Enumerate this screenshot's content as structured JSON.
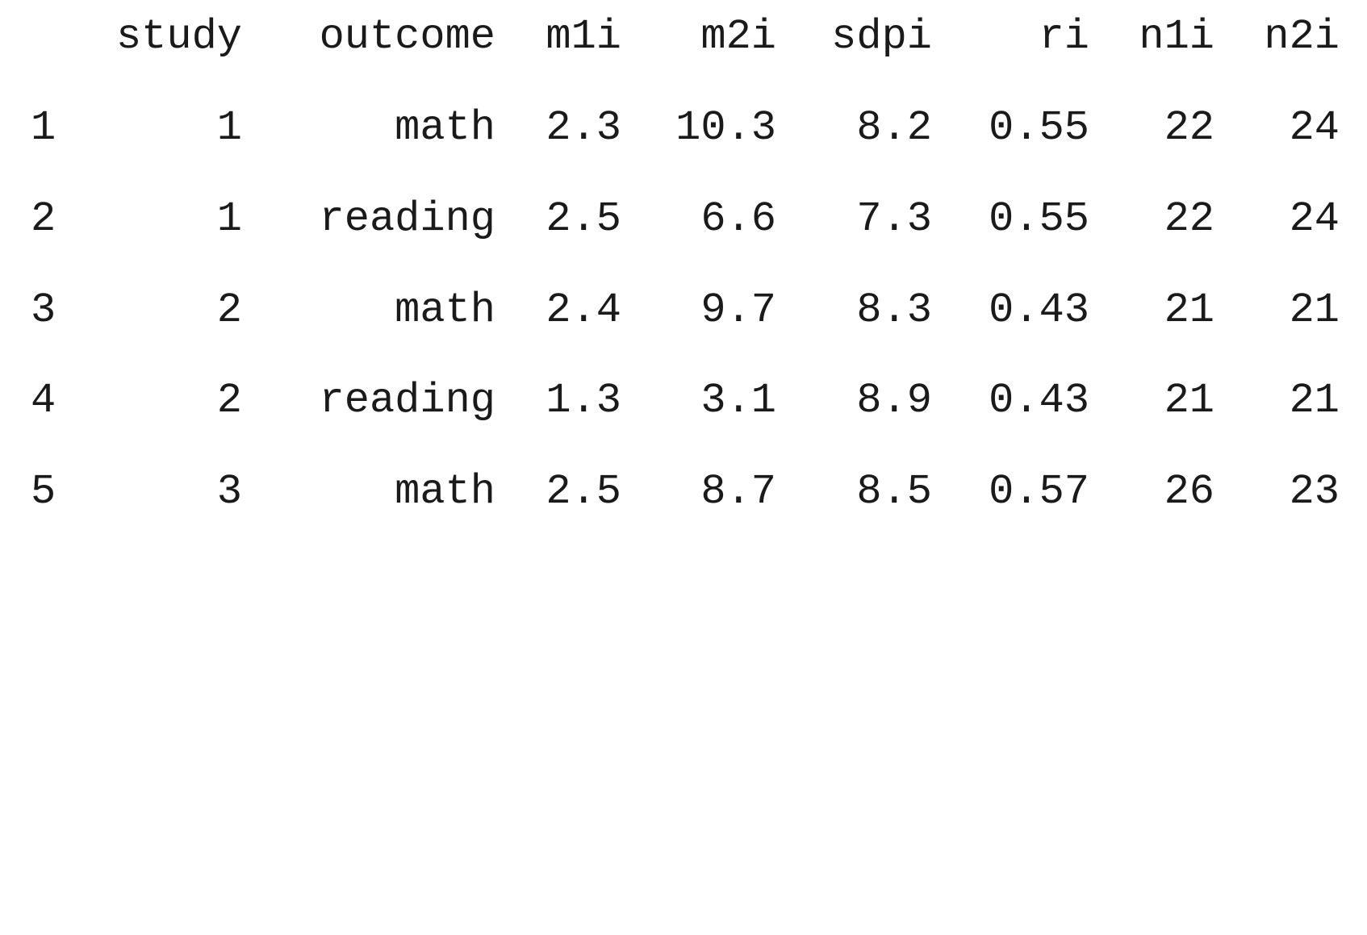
{
  "table": {
    "columns": [
      "study",
      "outcome",
      "m1i",
      "m2i",
      "sdpi",
      "ri",
      "n1i",
      "n2i"
    ],
    "rows": [
      {
        "rowname": "1",
        "study": "1",
        "outcome": "math",
        "m1i": "2.3",
        "m2i": "10.3",
        "sdpi": "8.2",
        "ri": "0.55",
        "n1i": "22",
        "n2i": "24"
      },
      {
        "rowname": "2",
        "study": "1",
        "outcome": "reading",
        "m1i": "2.5",
        "m2i": "6.6",
        "sdpi": "7.3",
        "ri": "0.55",
        "n1i": "22",
        "n2i": "24"
      },
      {
        "rowname": "3",
        "study": "2",
        "outcome": "math",
        "m1i": "2.4",
        "m2i": "9.7",
        "sdpi": "8.3",
        "ri": "0.43",
        "n1i": "21",
        "n2i": "21"
      },
      {
        "rowname": "4",
        "study": "2",
        "outcome": "reading",
        "m1i": "1.3",
        "m2i": "3.1",
        "sdpi": "8.9",
        "ri": "0.43",
        "n1i": "21",
        "n2i": "21"
      },
      {
        "rowname": "5",
        "study": "3",
        "outcome": "math",
        "m1i": "2.5",
        "m2i": "8.7",
        "sdpi": "8.5",
        "ri": "0.57",
        "n1i": "26",
        "n2i": "23"
      }
    ]
  }
}
